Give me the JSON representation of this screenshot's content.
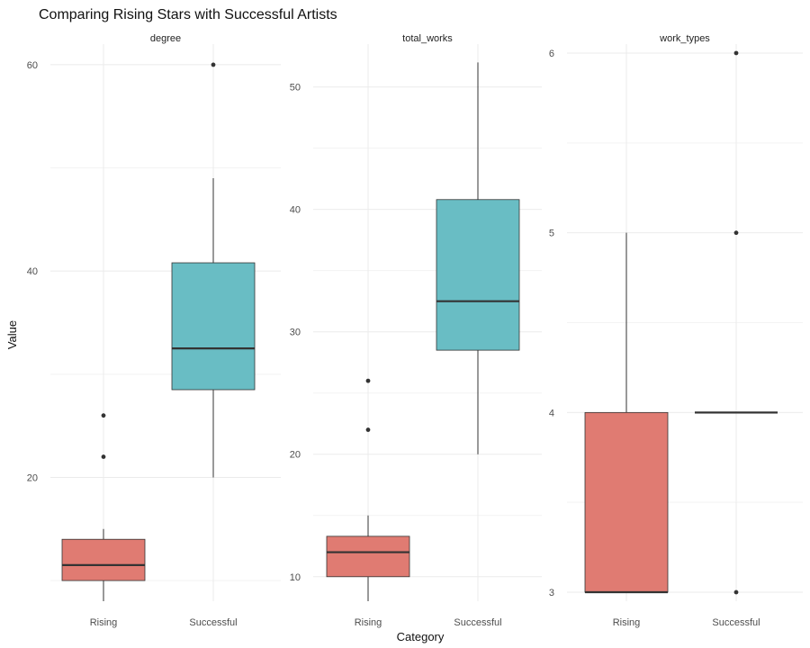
{
  "chart_data": {
    "type": "boxplot",
    "title": "Comparing Rising Stars with Successful Artists",
    "xlabel": "Category",
    "ylabel": "Value",
    "categories": [
      "Rising",
      "Successful"
    ],
    "colors": {
      "Rising": "#E07B72",
      "Successful": "#69BDC4"
    },
    "grid": true,
    "facets": [
      {
        "label": "degree",
        "ylim": [
          8,
          62
        ],
        "yticks": [
          20,
          40,
          60
        ],
        "boxes": [
          {
            "category": "Rising",
            "min": 8,
            "q1": 10,
            "median": 11.5,
            "q3": 14,
            "max": 15,
            "outliers": [
              22,
              26
            ]
          },
          {
            "category": "Successful",
            "min": 20,
            "q1": 28.5,
            "median": 32.5,
            "q3": 40.8,
            "max": 49,
            "outliers": [
              60
            ]
          }
        ]
      },
      {
        "label": "total_works",
        "ylim": [
          8,
          53.5
        ],
        "yticks": [
          10,
          20,
          30,
          40,
          50
        ],
        "boxes": [
          {
            "category": "Rising",
            "min": 8,
            "q1": 10,
            "median": 12,
            "q3": 13.3,
            "max": 15,
            "outliers": [
              22,
              26
            ]
          },
          {
            "category": "Successful",
            "min": 20,
            "q1": 28.5,
            "median": 32.5,
            "q3": 40.8,
            "max": 52,
            "outliers": []
          }
        ]
      },
      {
        "label": "work_types",
        "ylim": [
          2.95,
          6.05
        ],
        "yticks": [
          3,
          4,
          5,
          6
        ],
        "boxes": [
          {
            "category": "Rising",
            "min": 3,
            "q1": 3,
            "median": 3,
            "q3": 4,
            "max": 5,
            "outliers": []
          },
          {
            "category": "Successful",
            "min": 4,
            "q1": 4,
            "median": 4,
            "q3": 4,
            "max": 4,
            "outliers": [
              3,
              5,
              6
            ]
          }
        ]
      }
    ]
  }
}
